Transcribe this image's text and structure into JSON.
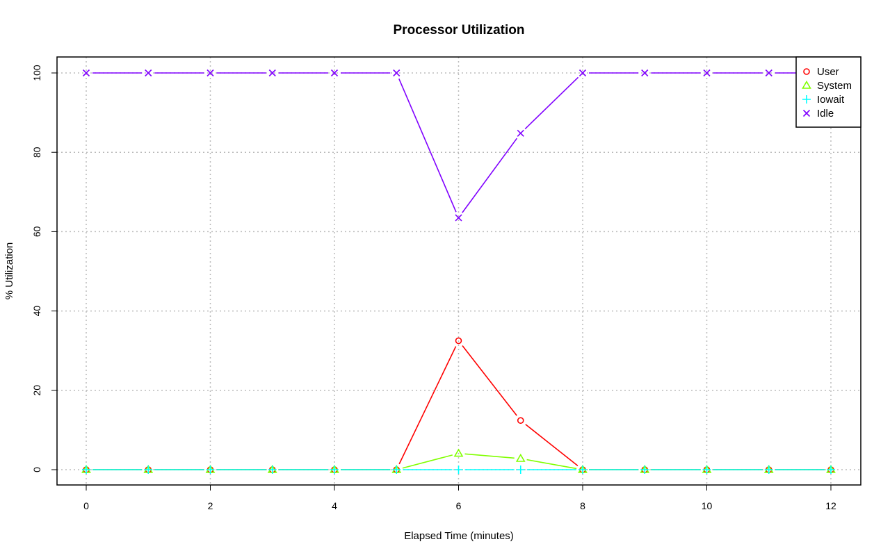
{
  "chart_data": {
    "type": "line",
    "title": "Processor Utilization",
    "xlabel": "Elapsed Time (minutes)",
    "ylabel": "% Utilization",
    "xlim": [
      -0.5,
      12.5
    ],
    "ylim": [
      -4,
      104
    ],
    "x_ticks": [
      0,
      2,
      4,
      6,
      8,
      10,
      12
    ],
    "y_ticks": [
      0,
      20,
      40,
      60,
      80,
      100
    ],
    "grid": true,
    "legend_position": "top-right",
    "x": [
      0,
      1,
      2,
      3,
      4,
      5,
      6,
      7,
      8,
      9,
      10,
      11,
      12
    ],
    "series": [
      {
        "name": "User",
        "color": "#ff0000",
        "marker": "circle",
        "values": [
          0,
          0,
          0,
          0,
          0,
          0,
          32.5,
          12.4,
          0,
          0,
          0,
          0,
          0
        ]
      },
      {
        "name": "System",
        "color": "#80ff00",
        "marker": "triangle",
        "values": [
          0,
          0,
          0,
          0,
          0,
          0,
          4.1,
          2.8,
          0,
          0,
          0,
          0,
          0
        ]
      },
      {
        "name": "Iowait",
        "color": "#00ffff",
        "marker": "plus",
        "values": [
          0,
          0,
          0,
          0,
          0,
          0,
          0,
          0,
          0,
          0,
          0,
          0,
          0
        ]
      },
      {
        "name": "Idle",
        "color": "#8000ff",
        "marker": "x",
        "values": [
          100,
          100,
          100,
          100,
          100,
          100,
          63.5,
          84.8,
          100,
          100,
          100,
          100,
          100
        ]
      }
    ]
  }
}
